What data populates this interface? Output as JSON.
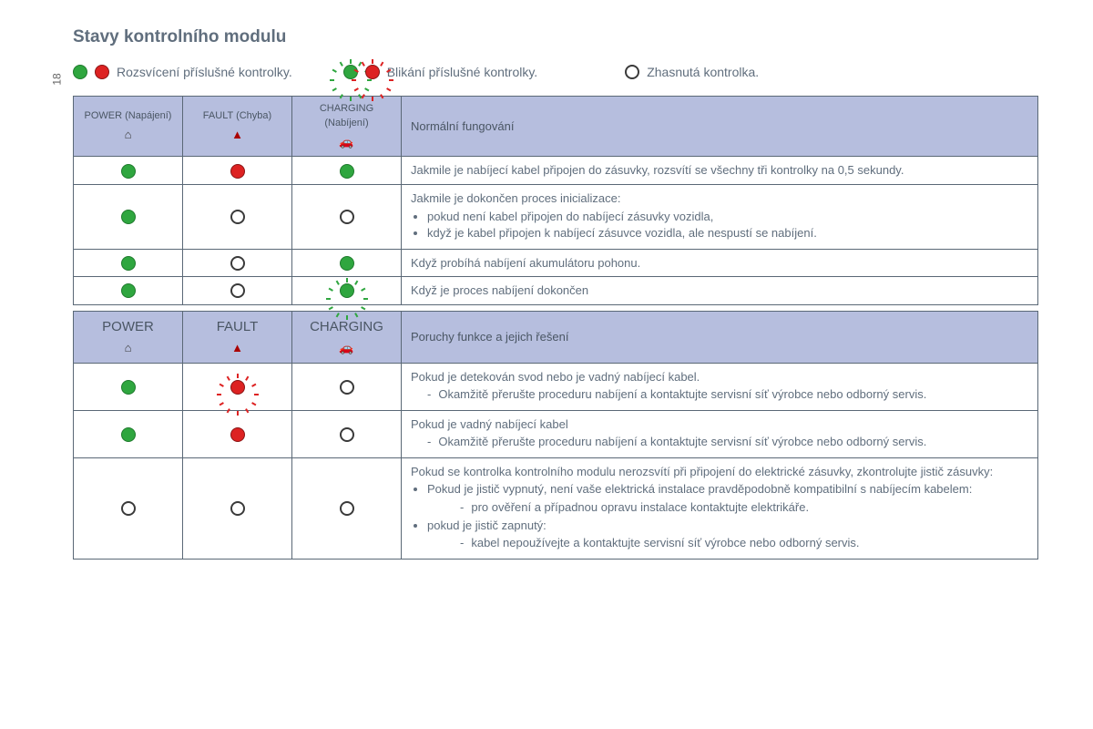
{
  "page_number": "18",
  "title": "Stavy kontrolního modulu",
  "legend": {
    "lit": "Rozsvícení příslušné kontrolky.",
    "blink": "Blikání příslušné kontrolky.",
    "off": "Zhasnutá kontrolka."
  },
  "colors": {
    "green": "#2fa63f",
    "red": "#d22222",
    "header_bg": "#b6bede",
    "text": "#606e7d",
    "border": "#5a6876"
  },
  "table1": {
    "headers": {
      "power": "POWER (Napájení)",
      "fault": "FAULT (Chyba)",
      "charging": "CHARGING (Nabíjení)",
      "desc": "Normální fungování"
    },
    "rows": [
      {
        "power": "green",
        "fault": "red",
        "charging": "green",
        "desc_main": "Jakmile je nabíjecí kabel připojen do zásuvky, rozsvítí se všechny tři kontrolky na 0,5 sekundy."
      },
      {
        "power": "green",
        "fault": "off",
        "charging": "off",
        "desc_main": "Jakmile je dokončen proces inicializace:",
        "bullets": [
          "pokud není kabel připojen do nabíjecí zásuvky vozidla,",
          "když je kabel připojen k nabíjecí zásuvce vozidla, ale nespustí se nabíjení."
        ]
      },
      {
        "power": "green",
        "fault": "off",
        "charging": "green",
        "desc_main": "Když probíhá nabíjení akumulátoru pohonu."
      },
      {
        "power": "green",
        "fault": "off",
        "charging": "green-blink",
        "desc_main": "Když je proces nabíjení dokončen"
      }
    ]
  },
  "table2": {
    "headers": {
      "power": "POWER",
      "fault": "FAULT",
      "charging": "CHARGING",
      "desc": "Poruchy funkce a jejich řešení"
    },
    "rows": [
      {
        "power": "green",
        "fault": "red-blink",
        "charging": "off",
        "desc_main": "Pokud je detekován svod nebo je vadný nabíjecí kabel.",
        "dashes": [
          "Okamžitě přerušte proceduru nabíjení a kontaktujte servisní síť výrobce nebo odborný servis."
        ]
      },
      {
        "power": "green",
        "fault": "red",
        "charging": "off",
        "desc_main": "Pokud je vadný nabíjecí kabel",
        "dashes": [
          "Okamžitě přerušte proceduru nabíjení a kontaktujte servisní síť výrobce nebo odborný servis."
        ]
      },
      {
        "power": "off",
        "fault": "off",
        "charging": "off",
        "desc_main": "Pokud se kontrolka kontrolního modulu nerozsvítí při připojení do elektrické zásuvky, zkontrolujte jistič zásuvky:",
        "complex": {
          "b1": "Pokud je jistič vypnutý, není vaše elektrická instalace pravděpodobně kompatibilní s nabíjecím kabelem:",
          "b1_dash": "pro ověření a případnou opravu instalace kontaktujte elektrikáře.",
          "b2": "pokud je jistič zapnutý:",
          "b2_dash": "kabel nepoužívejte a kontaktujte servisní síť výrobce nebo odborný servis."
        }
      }
    ]
  }
}
